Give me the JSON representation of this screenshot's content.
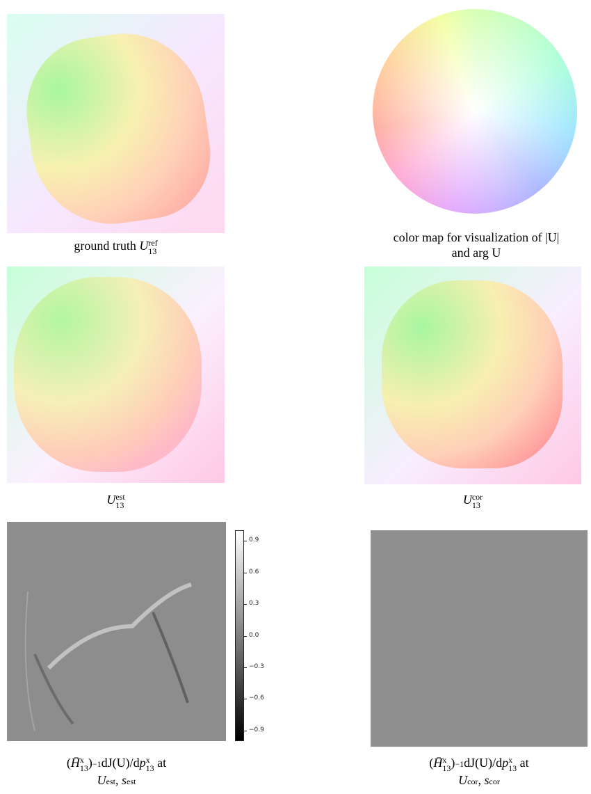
{
  "panels": [
    {
      "caption": [
        [
          "ground truth ",
          {
            "base": "U",
            "sub": "13",
            "sup": "ref"
          }
        ]
      ]
    },
    {
      "caption": [
        [
          "color map for visualization of |U|"
        ],
        [
          "and arg U"
        ]
      ]
    },
    {
      "caption": [
        [
          {
            "base": "U",
            "sub": "13",
            "sup": "est"
          }
        ]
      ]
    },
    {
      "caption": [
        [
          {
            "base": "U",
            "sub": "13",
            "sup": "cor"
          }
        ]
      ]
    },
    {
      "caption": [
        [
          "(",
          {
            "base": "H̄",
            "sub": "13",
            "sup": "x"
          },
          ")",
          {
            "base": "",
            "sup": "−1"
          },
          "dJ(U)/d",
          {
            "base": "p",
            "sub": "13",
            "sup": "x"
          },
          " at"
        ],
        [
          {
            "base": "U",
            "sup": "est"
          },
          ", ",
          {
            "base": "s",
            "sup": "est"
          }
        ]
      ]
    },
    {
      "caption": [
        [
          "(",
          {
            "base": "H̄",
            "sub": "13",
            "sup": "x"
          },
          ")",
          {
            "base": "",
            "sup": "−1"
          },
          "dJ(U)/d",
          {
            "base": "p",
            "sub": "13",
            "sup": "x"
          },
          " at"
        ],
        [
          {
            "base": "U",
            "sup": "cor"
          },
          ", ",
          {
            "base": "s",
            "sup": "cor"
          }
        ]
      ]
    }
  ],
  "colorbar": {
    "range": [
      -1,
      1
    ],
    "ticks": [
      0.9,
      0.6,
      0.3,
      {
        "value": 0,
        "label": "0.0"
      },
      {
        "value": -0.3,
        "label": "−0.3"
      },
      {
        "value": -0.6,
        "label": "−0.6"
      },
      {
        "value": -0.9,
        "label": "−0.9"
      }
    ]
  }
}
